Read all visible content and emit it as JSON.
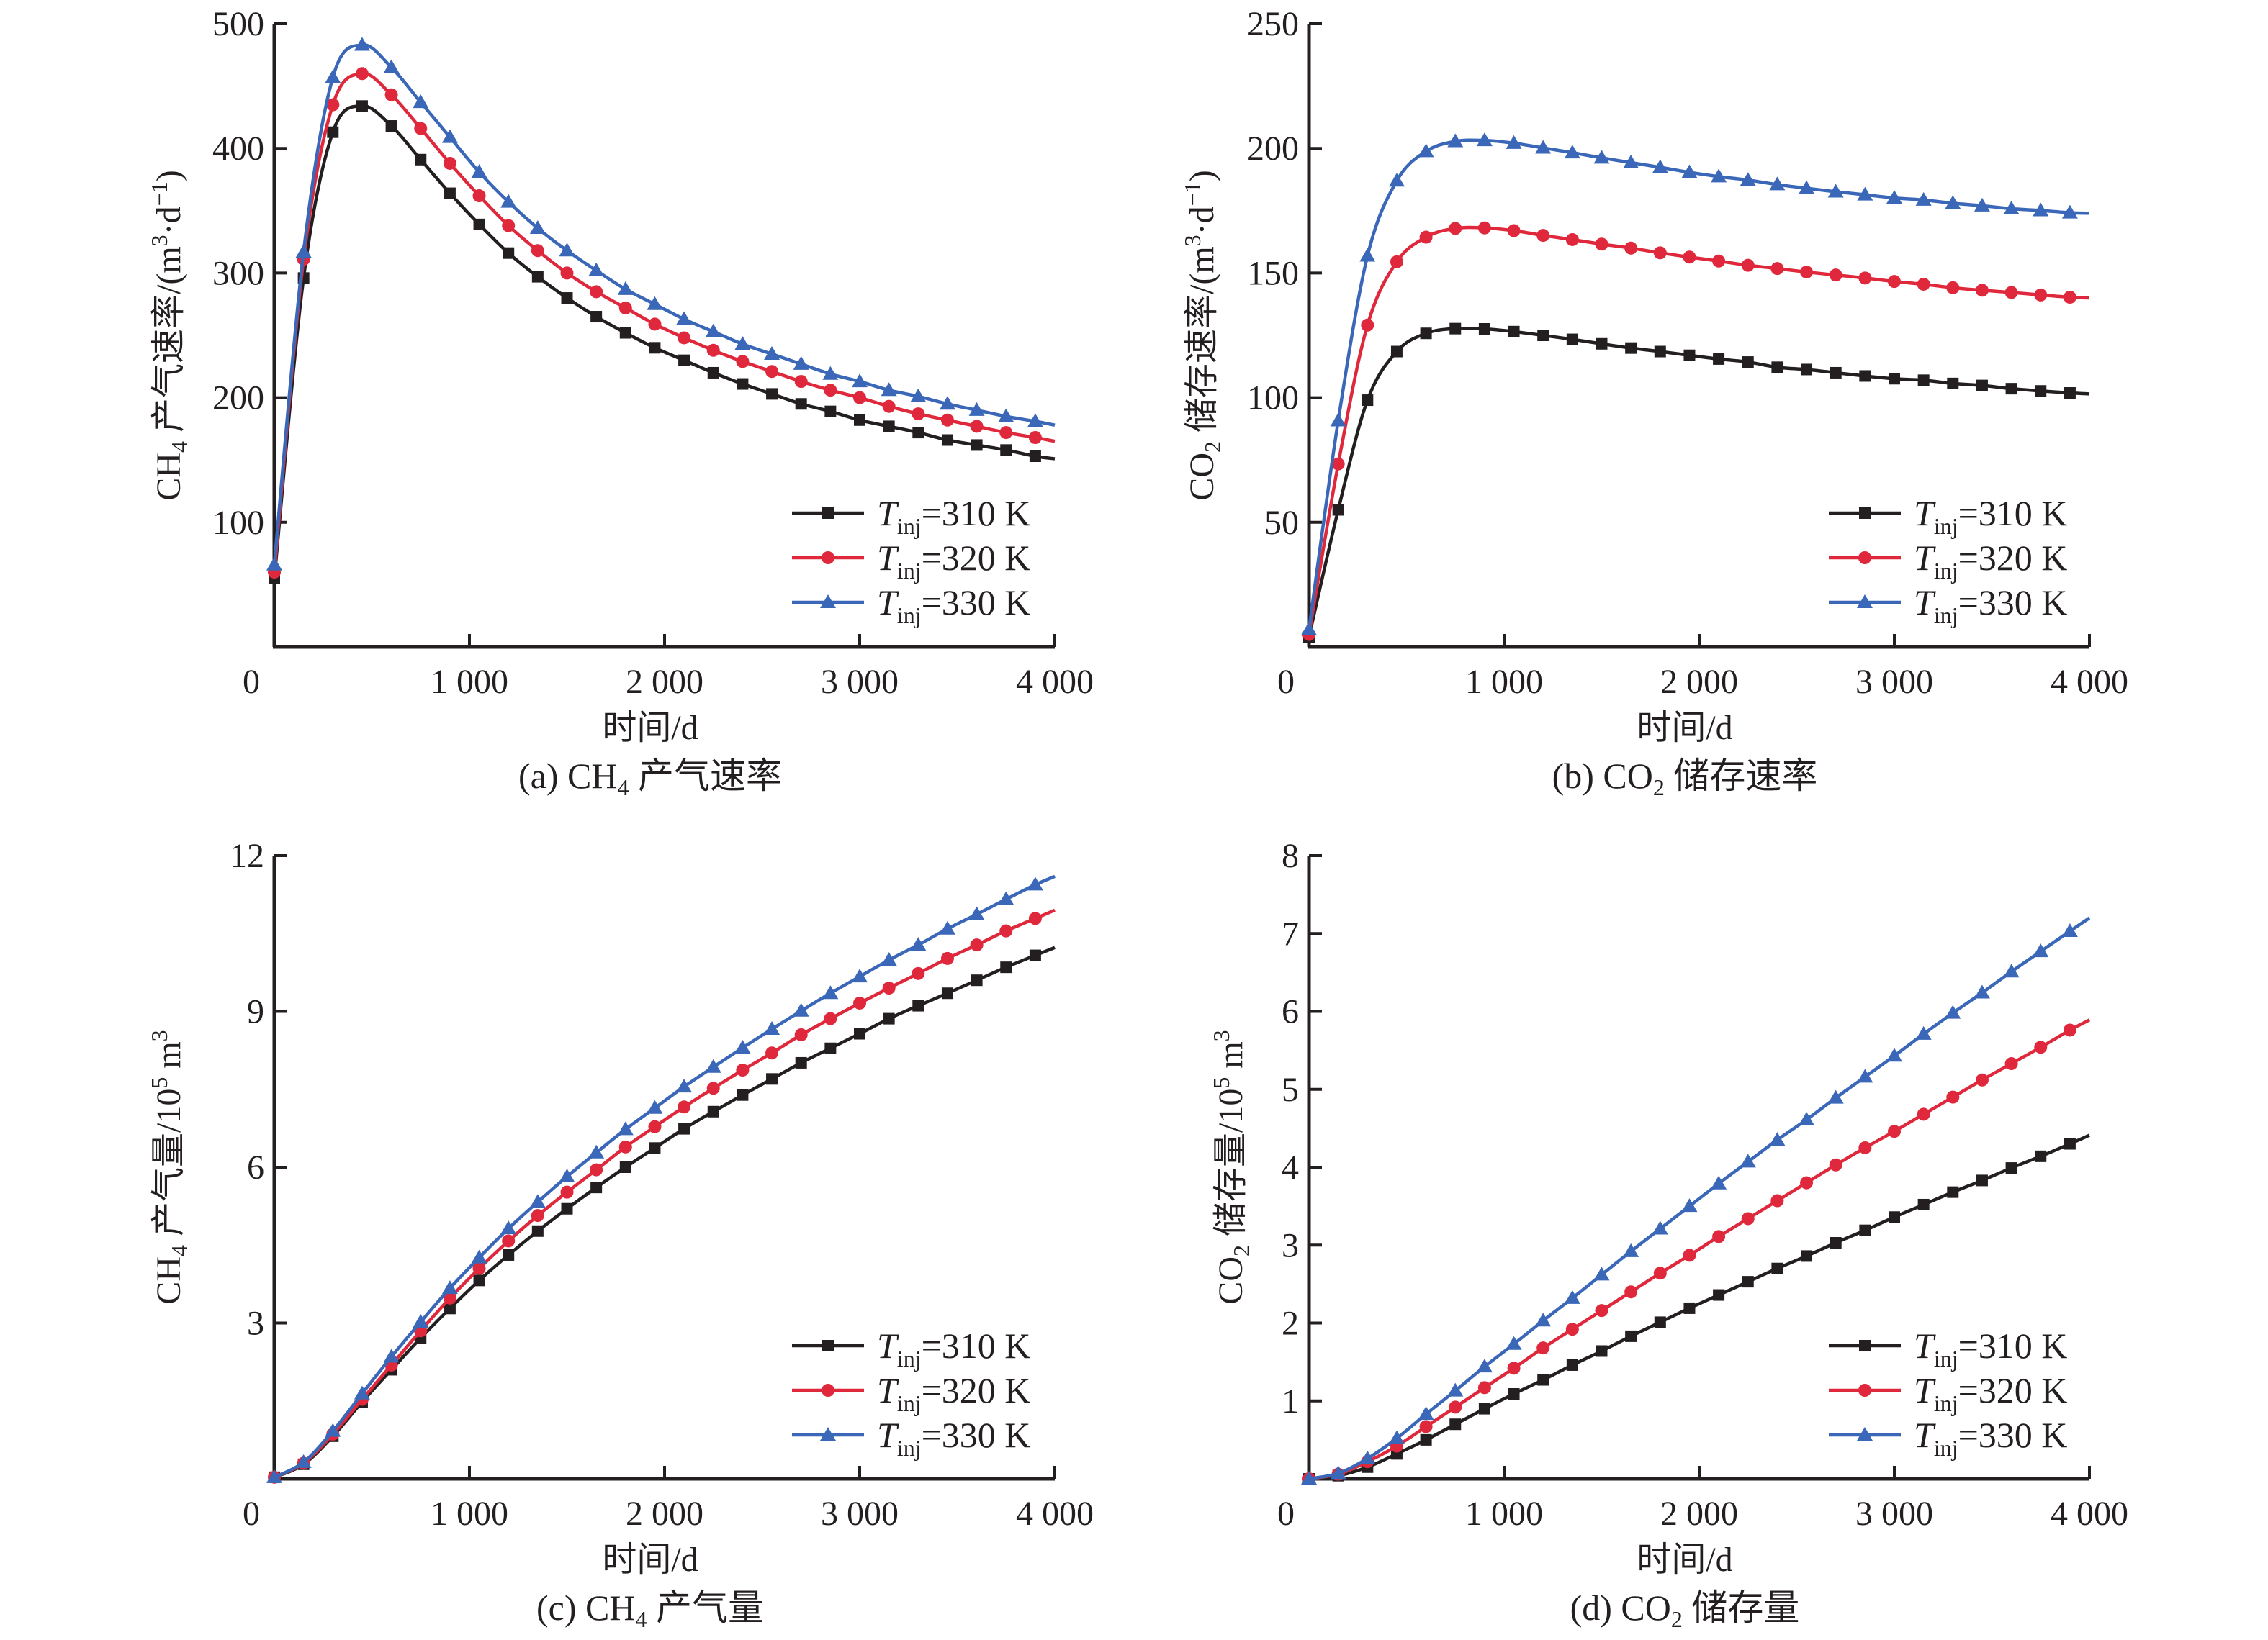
{
  "colors": {
    "s310": "#231f20",
    "s320": "#e0283c",
    "s330": "#3a67b8",
    "axis": "#231f20"
  },
  "chart_data": [
    {
      "id": "a",
      "type": "line",
      "caption_prefix": "(a) CH",
      "caption_sub": "4",
      "caption_suffix": " 产气速率",
      "xlabel": "时间/d",
      "ylabel_prefix": "CH",
      "ylabel_sub": "4",
      "ylabel_mid": " 产气速率/(m",
      "ylabel_sup1": "3",
      "ylabel_mid2": "·d",
      "ylabel_sup2": "−1",
      "ylabel_suffix": ")",
      "xlim": [
        0,
        4000
      ],
      "ylim": [
        0,
        500
      ],
      "xticks": [
        0,
        1000,
        2000,
        3000,
        4000
      ],
      "xtick_labels": [
        "0",
        "1 000",
        "2 000",
        "3 000",
        "4 000"
      ],
      "yticks": [
        100,
        200,
        300,
        400,
        500
      ],
      "ytick_labels": [
        "100",
        "200",
        "300",
        "400",
        "500"
      ],
      "legend_position": "bottom-right",
      "x": [
        0,
        150,
        300,
        450,
        600,
        750,
        900,
        1050,
        1200,
        1350,
        1500,
        1650,
        1800,
        1950,
        2100,
        2250,
        2400,
        2550,
        2700,
        2850,
        3000,
        3150,
        3300,
        3450,
        3600,
        3750,
        3900
      ],
      "series": [
        {
          "name": "T_inj=310 K",
          "marker": "square",
          "color_key": "s310",
          "values": [
            55,
            296,
            413,
            434,
            418,
            391,
            364,
            339,
            316,
            297,
            280,
            265,
            252,
            240,
            230,
            220,
            211,
            203,
            195,
            189,
            182,
            177,
            172,
            166,
            162,
            158,
            153
          ]
        },
        {
          "name": "T_inj=320 K",
          "marker": "circle",
          "color_key": "s320",
          "values": [
            60,
            311,
            435,
            460,
            443,
            416,
            388,
            362,
            338,
            318,
            300,
            285,
            272,
            259,
            248,
            238,
            229,
            221,
            213,
            206,
            200,
            193,
            187,
            182,
            177,
            172,
            168
          ]
        },
        {
          "name": "T_inj=330 K",
          "marker": "triangle",
          "color_key": "s330",
          "values": [
            66,
            317,
            457,
            483,
            465,
            437,
            409,
            381,
            357,
            336,
            318,
            302,
            287,
            275,
            263,
            253,
            243,
            235,
            227,
            219,
            213,
            206,
            201,
            195,
            190,
            185,
            181
          ]
        }
      ],
      "final_x": 4000,
      "final_values": [
        151,
        165,
        178
      ]
    },
    {
      "id": "b",
      "type": "line",
      "caption_prefix": "(b) CO",
      "caption_sub": "2",
      "caption_suffix": " 储存速率",
      "xlabel": "时间/d",
      "ylabel_prefix": "CO",
      "ylabel_sub": "2",
      "ylabel_mid": " 储存速率/(m",
      "ylabel_sup1": "3",
      "ylabel_mid2": "·d",
      "ylabel_sup2": "−1",
      "ylabel_suffix": ")",
      "xlim": [
        0,
        4000
      ],
      "ylim": [
        0,
        250
      ],
      "xticks": [
        0,
        1000,
        2000,
        3000,
        4000
      ],
      "xtick_labels": [
        "0",
        "1 000",
        "2 000",
        "3 000",
        "4 000"
      ],
      "yticks": [
        50,
        100,
        150,
        200,
        250
      ],
      "ytick_labels": [
        "50",
        "100",
        "150",
        "200",
        "250"
      ],
      "legend_position": "bottom-right",
      "x": [
        0,
        150,
        300,
        450,
        600,
        750,
        900,
        1050,
        1200,
        1350,
        1500,
        1650,
        1800,
        1950,
        2100,
        2250,
        2400,
        2550,
        2700,
        2850,
        3000,
        3150,
        3300,
        3450,
        3600,
        3750,
        3900
      ],
      "series": [
        {
          "name": "T_inj=310 K",
          "marker": "square",
          "color_key": "s310",
          "values": [
            4,
            55,
            99,
            118.5,
            125.8,
            127.7,
            127.6,
            126.5,
            125,
            123.4,
            121.6,
            119.9,
            118.5,
            117,
            115.5,
            114.3,
            112.2,
            111.3,
            110,
            108.7,
            107.6,
            107,
            105.7,
            104.9,
            103.6,
            102.7,
            101.9
          ]
        },
        {
          "name": "T_inj=320 K",
          "marker": "circle",
          "color_key": "s320",
          "values": [
            5,
            73.4,
            129.1,
            154.5,
            164.4,
            167.9,
            168.1,
            167,
            165.1,
            163.4,
            161.6,
            160,
            158.1,
            156.4,
            154.8,
            153.1,
            151.8,
            150.4,
            149.2,
            148,
            146.6,
            145.5,
            144.1,
            143.1,
            142.2,
            141.2,
            140.3
          ]
        },
        {
          "name": "T_inj=330 K",
          "marker": "triangle",
          "color_key": "s330",
          "values": [
            7,
            90.8,
            156.9,
            187,
            198.8,
            202.8,
            203.2,
            202.1,
            200.2,
            198.3,
            196.2,
            194.3,
            192.4,
            190.4,
            188.7,
            187.3,
            185.5,
            184,
            182.6,
            181.4,
            180.1,
            179.3,
            178,
            177,
            175.8,
            175.1,
            174.2
          ]
        }
      ],
      "final_x": 4000,
      "final_values": [
        101.5,
        140,
        174
      ]
    },
    {
      "id": "c",
      "type": "line",
      "caption_prefix": "(c) CH",
      "caption_sub": "4",
      "caption_suffix": " 产气量",
      "xlabel": "时间/d",
      "ylabel_prefix": "CH",
      "ylabel_sub": "4",
      "ylabel_mid": " 产气量/10",
      "ylabel_sup1": "5",
      "ylabel_mid2": " m",
      "ylabel_sup2": "3",
      "ylabel_suffix": "",
      "xlim": [
        0,
        4000
      ],
      "ylim": [
        0,
        12
      ],
      "xticks": [
        0,
        1000,
        2000,
        3000,
        4000
      ],
      "xtick_labels": [
        "0",
        "1 000",
        "2 000",
        "3 000",
        "4 000"
      ],
      "yticks": [
        3,
        6,
        9,
        12
      ],
      "ytick_labels": [
        "3",
        "6",
        "9",
        "12"
      ],
      "legend_position": "bottom-right",
      "x": [
        0,
        150,
        300,
        450,
        600,
        750,
        900,
        1050,
        1200,
        1350,
        1500,
        1650,
        1800,
        1950,
        2100,
        2250,
        2400,
        2550,
        2700,
        2850,
        3000,
        3150,
        3300,
        3450,
        3600,
        3750,
        3900
      ],
      "series": [
        {
          "name": "T_inj=310 K",
          "marker": "square",
          "color_key": "s310",
          "values": [
            0.03,
            0.28,
            0.82,
            1.48,
            2.1,
            2.71,
            3.28,
            3.82,
            4.31,
            4.77,
            5.2,
            5.61,
            6.0,
            6.37,
            6.74,
            7.07,
            7.39,
            7.7,
            8.01,
            8.29,
            8.57,
            8.86,
            9.11,
            9.35,
            9.6,
            9.85,
            10.08
          ]
        },
        {
          "name": "T_inj=320 K",
          "marker": "circle",
          "color_key": "s320",
          "values": [
            0.03,
            0.3,
            0.86,
            1.53,
            2.19,
            2.85,
            3.48,
            4.05,
            4.58,
            5.07,
            5.52,
            5.95,
            6.39,
            6.78,
            7.16,
            7.52,
            7.87,
            8.2,
            8.55,
            8.86,
            9.16,
            9.45,
            9.73,
            10.02,
            10.28,
            10.55,
            10.79
          ]
        },
        {
          "name": "T_inj=330 K",
          "marker": "triangle",
          "color_key": "s330",
          "values": [
            0.03,
            0.32,
            0.92,
            1.64,
            2.35,
            3.02,
            3.67,
            4.26,
            4.82,
            5.33,
            5.82,
            6.28,
            6.73,
            7.14,
            7.55,
            7.93,
            8.3,
            8.66,
            9.01,
            9.35,
            9.67,
            9.99,
            10.28,
            10.59,
            10.87,
            11.16,
            11.44
          ]
        }
      ],
      "final_x": 4000,
      "final_values": [
        10.23,
        10.95,
        11.6
      ]
    },
    {
      "id": "d",
      "type": "line",
      "caption_prefix": "(d) CO",
      "caption_sub": "2",
      "caption_suffix": " 储存量",
      "xlabel": "时间/d",
      "ylabel_prefix": "CO",
      "ylabel_sub": "2",
      "ylabel_mid": " 储存量/10",
      "ylabel_sup1": "5",
      "ylabel_mid2": " m",
      "ylabel_sup2": "3",
      "ylabel_suffix": "",
      "xlim": [
        0,
        4000
      ],
      "ylim": [
        0,
        8
      ],
      "xticks": [
        0,
        1000,
        2000,
        3000,
        4000
      ],
      "xtick_labels": [
        "0",
        "1 000",
        "2 000",
        "3 000",
        "4 000"
      ],
      "yticks": [
        1,
        2,
        3,
        4,
        5,
        6,
        7,
        8
      ],
      "ytick_labels": [
        "1",
        "2",
        "3",
        "4",
        "5",
        "6",
        "7",
        "8"
      ],
      "legend_position": "bottom-right",
      "x": [
        0,
        150,
        300,
        450,
        600,
        750,
        900,
        1050,
        1200,
        1350,
        1500,
        1650,
        1800,
        1950,
        2100,
        2250,
        2400,
        2550,
        2700,
        2850,
        3000,
        3150,
        3300,
        3450,
        3600,
        3750,
        3900
      ],
      "series": [
        {
          "name": "T_inj=310 K",
          "marker": "square",
          "color_key": "s310",
          "values": [
            0,
            0.04,
            0.15,
            0.32,
            0.5,
            0.7,
            0.9,
            1.09,
            1.27,
            1.46,
            1.64,
            1.83,
            2.01,
            2.19,
            2.36,
            2.53,
            2.7,
            2.86,
            3.03,
            3.19,
            3.36,
            3.52,
            3.68,
            3.83,
            3.99,
            4.14,
            4.3
          ]
        },
        {
          "name": "T_inj=320 K",
          "marker": "circle",
          "color_key": "s320",
          "values": [
            0,
            0.06,
            0.22,
            0.42,
            0.67,
            0.92,
            1.17,
            1.42,
            1.68,
            1.92,
            2.16,
            2.4,
            2.64,
            2.87,
            3.11,
            3.34,
            3.57,
            3.8,
            4.03,
            4.25,
            4.46,
            4.68,
            4.9,
            5.12,
            5.33,
            5.54,
            5.76
          ]
        },
        {
          "name": "T_inj=330 K",
          "marker": "triangle",
          "color_key": "s330",
          "values": [
            0,
            0.07,
            0.26,
            0.52,
            0.83,
            1.13,
            1.44,
            1.73,
            2.03,
            2.32,
            2.62,
            2.92,
            3.21,
            3.5,
            3.79,
            4.07,
            4.35,
            4.61,
            4.89,
            5.16,
            5.43,
            5.71,
            5.98,
            6.24,
            6.51,
            6.77,
            7.03
          ]
        }
      ],
      "final_x": 4000,
      "final_values": [
        4.41,
        5.89,
        7.2
      ]
    }
  ],
  "legend": {
    "items": [
      {
        "symbol": "T",
        "sub": "inj",
        "text": "=310 K",
        "marker": "square",
        "color_key": "s310"
      },
      {
        "symbol": "T",
        "sub": "inj",
        "text": "=320 K",
        "marker": "circle",
        "color_key": "s320"
      },
      {
        "symbol": "T",
        "sub": "inj",
        "text": "=330 K",
        "marker": "triangle",
        "color_key": "s330"
      }
    ]
  }
}
